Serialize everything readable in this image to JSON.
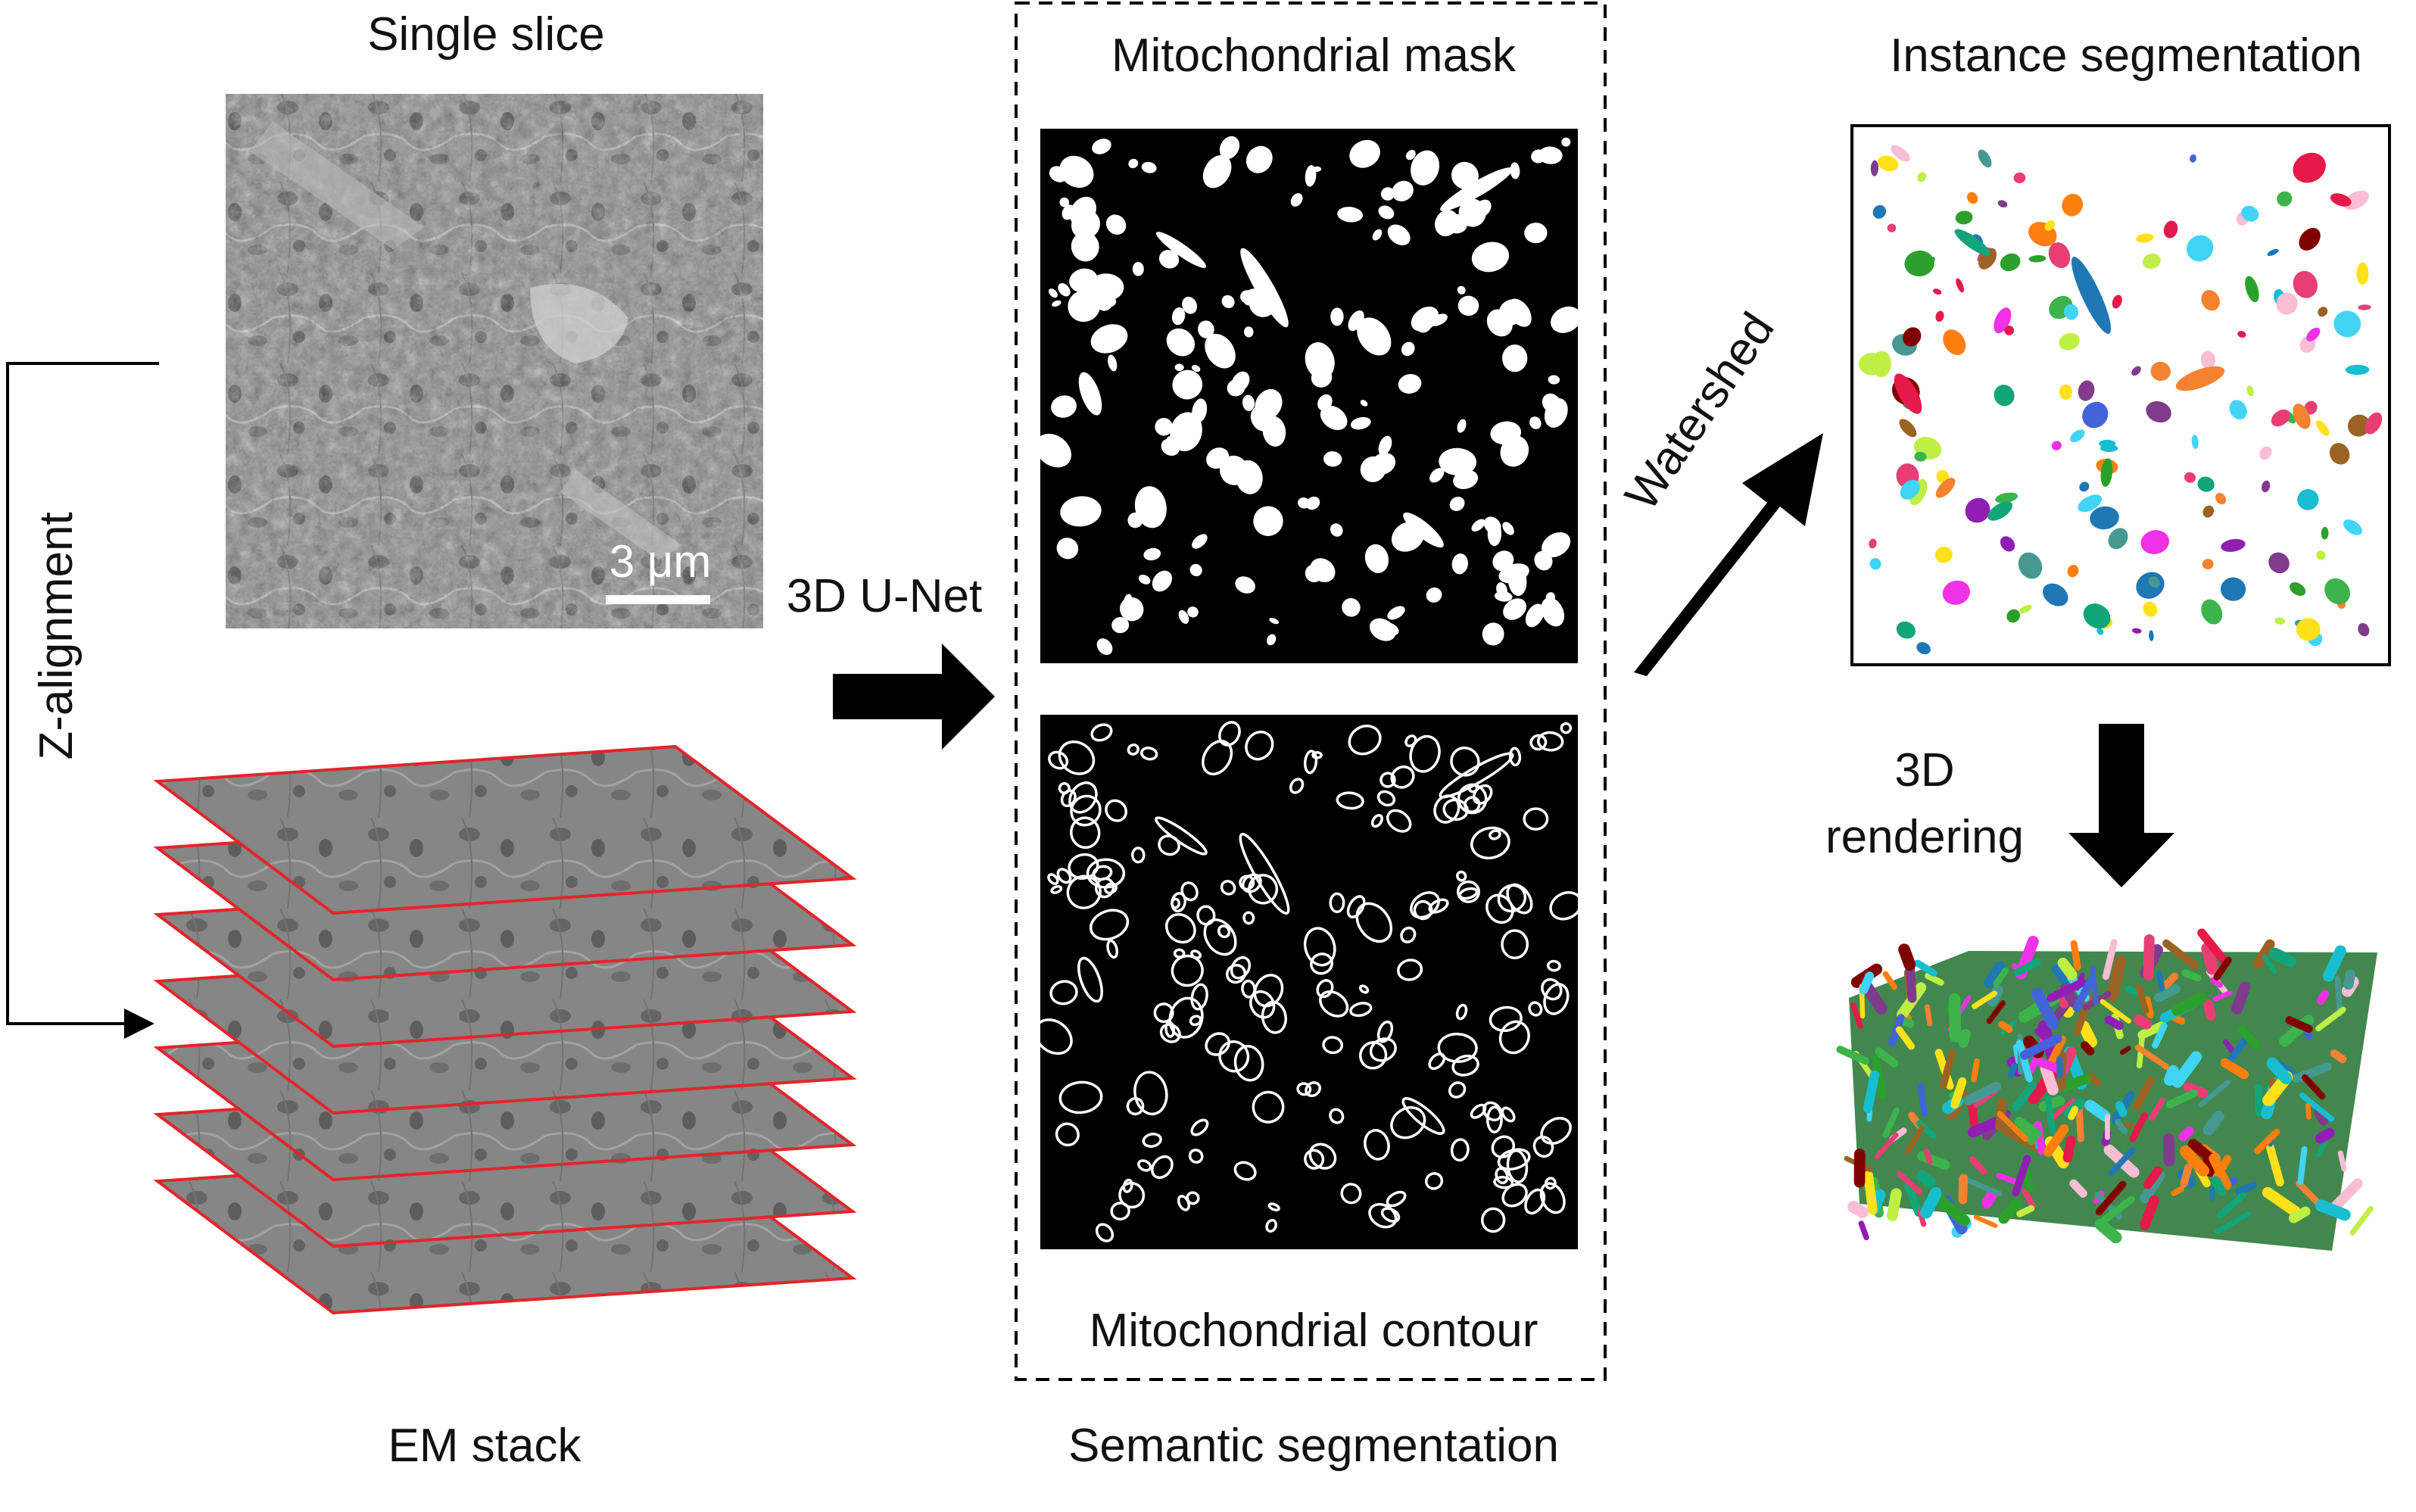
{
  "labels": {
    "single_slice": "Single slice",
    "scale_bar": "3 μm",
    "z_alignment": "Z-alignment",
    "em_stack": "EM stack",
    "unet": "3D U-Net",
    "mito_mask": "Mitochondrial mask",
    "mito_contour": "Mitochondrial contour",
    "semantic_seg": "Semantic segmentation",
    "watershed": "Watershed",
    "instance_seg": "Instance segmentation",
    "rendering_line1": "3D",
    "rendering_line2": "rendering"
  },
  "colors": {
    "stack_edge": "#e0262b",
    "em_gray": "#8a8a8a",
    "mask_bg": "#000000",
    "mask_fg": "#ffffff",
    "arrow": "#000000"
  },
  "stack": {
    "layer_count": 7
  },
  "instance_palette": [
    "#e6194b",
    "#3cb44b",
    "#ffe119",
    "#4363d8",
    "#f58231",
    "#911eb4",
    "#42d4f4",
    "#f032e6",
    "#bfef45",
    "#fabed4",
    "#469990",
    "#9a6324",
    "#800000",
    "#1f77b4",
    "#2ca02c",
    "#ff7f0e",
    "#17becf",
    "#7f3c8d",
    "#11a579",
    "#e73f74"
  ]
}
